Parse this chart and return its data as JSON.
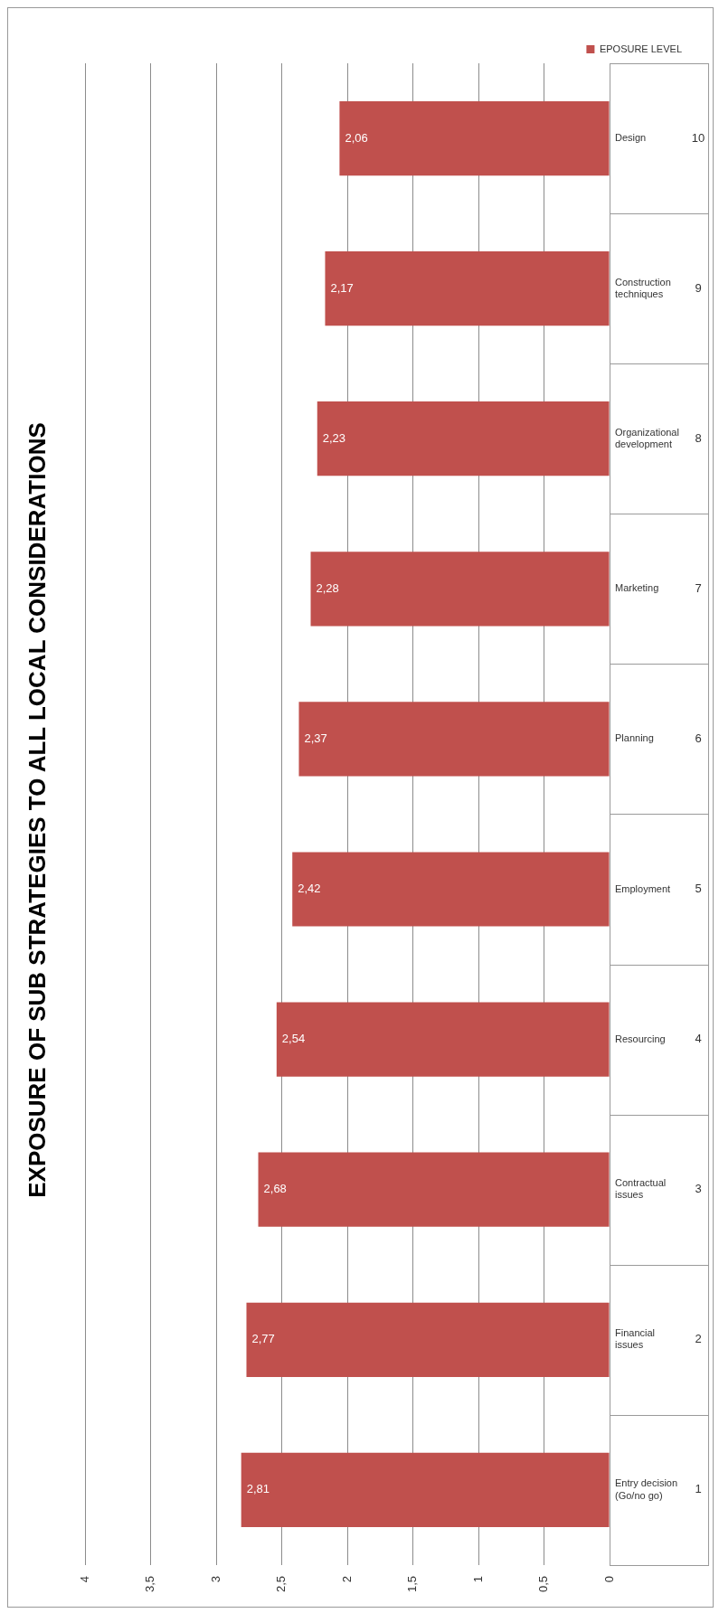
{
  "chart_data": {
    "type": "bar",
    "title": "EXPOSURE OF SUB STRATEGIES TO ALL LOCAL CONSIDERATIONS",
    "orientation": "horizontal",
    "categories": [
      "Design",
      "Construction techniques",
      "Organizational development",
      "Marketing",
      "Planning",
      "Employment",
      "Resourcing",
      "Contractual issues",
      "Financial issues",
      "Entry decision (Go/no go)"
    ],
    "series": [
      {
        "name": "EPOSURE LEVEL",
        "color": "#c0504d",
        "values": [
          2.06,
          2.17,
          2.23,
          2.28,
          2.37,
          2.42,
          2.54,
          2.68,
          2.77,
          2.81
        ],
        "value_labels": [
          "2,06",
          "2,17",
          "2,23",
          "2,28",
          "2,37",
          "2,42",
          "2,54",
          "2,68",
          "2,77",
          "2,81"
        ]
      }
    ],
    "xlim": [
      4,
      0
    ],
    "xticks": [
      0,
      {
        "value": 0.5,
        "label": "0,5"
      },
      1,
      {
        "value": 1.5,
        "label": "1,5"
      },
      2,
      {
        "value": 2.5,
        "label": "2,5"
      },
      3,
      {
        "value": 3.5,
        "label": "3,5"
      },
      4
    ],
    "annotations": [
      "10",
      "9",
      "8",
      "7",
      "6",
      "5",
      "4",
      "3",
      "2",
      "1"
    ],
    "grid": "x",
    "legend": "top right"
  }
}
